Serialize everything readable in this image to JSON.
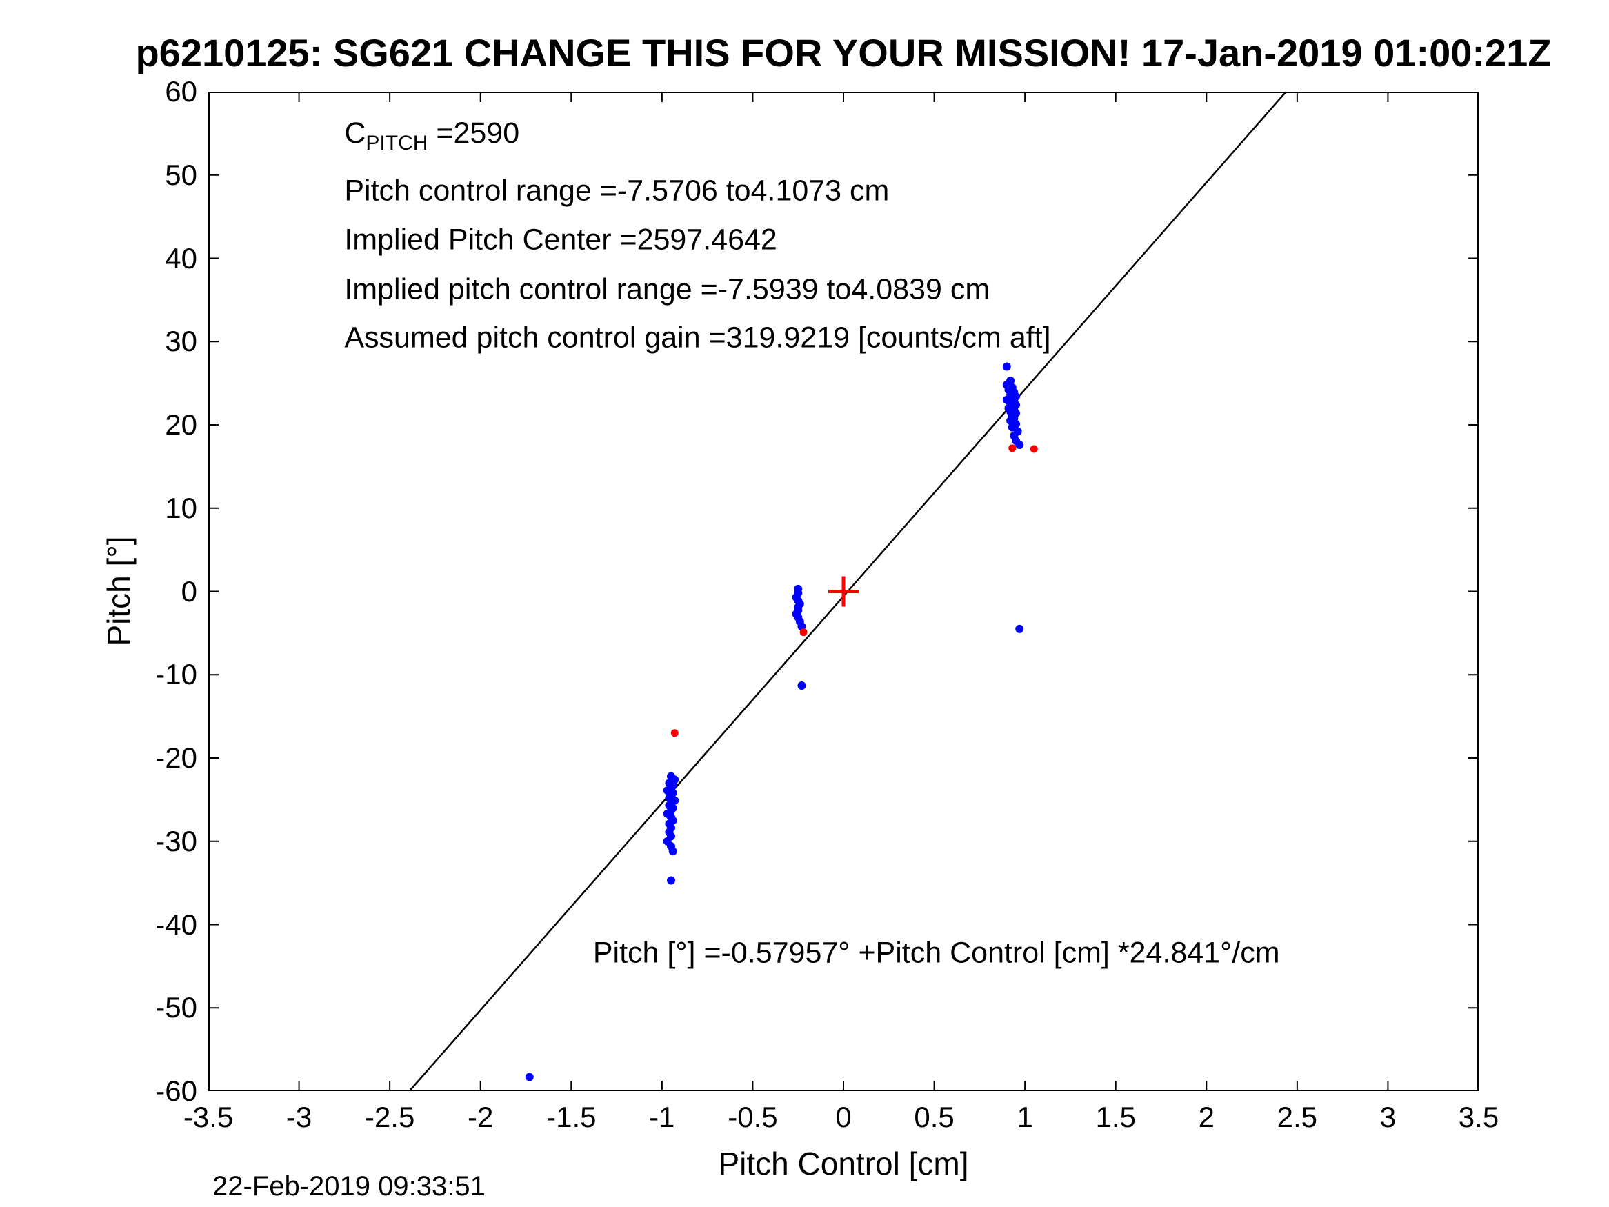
{
  "page": {
    "timestamp": "22-Feb-2019 09:33:51"
  },
  "chart_data": {
    "type": "scatter",
    "title": "p6210125: SG621 CHANGE THIS FOR YOUR MISSION! 17-Jan-2019 01:00:21Z",
    "xlabel": "Pitch Control [cm]",
    "ylabel": "Pitch [°]",
    "xlim": [
      -3.5,
      3.5
    ],
    "ylim": [
      -60,
      60
    ],
    "grid": false,
    "legend": "none",
    "axis_color": "#000000",
    "xticks": [
      -3.5,
      -3,
      -2.5,
      -2,
      -1.5,
      -1,
      -0.5,
      0,
      0.5,
      1,
      1.5,
      2,
      2.5,
      3,
      3.5
    ],
    "xtick_labels": [
      "-3.5",
      "-3",
      "-2.5",
      "-2",
      "-1.5",
      "-1",
      "-0.5",
      "0",
      "0.5",
      "1",
      "1.5",
      "2",
      "2.5",
      "3",
      "3.5"
    ],
    "yticks": [
      -60,
      -50,
      -40,
      -30,
      -20,
      -10,
      0,
      10,
      20,
      30,
      40,
      50,
      60
    ],
    "ytick_labels": [
      "-60",
      "-50",
      "-40",
      "-30",
      "-20",
      "-10",
      "0",
      "10",
      "20",
      "30",
      "40",
      "50",
      "60"
    ],
    "fit_line": {
      "intercept": -0.57957,
      "slope": 24.841,
      "color": "#000000"
    },
    "origin_marker": {
      "x": 0,
      "y": 0,
      "color": "#ff0000",
      "type": "plus"
    },
    "series": [
      {
        "name": "pitch-data",
        "color": "#0000ff",
        "marker": "dot",
        "marker_radius": 6,
        "points": [
          [
            -0.95,
            -22.2
          ],
          [
            -0.93,
            -22.6
          ],
          [
            -0.96,
            -23.0
          ],
          [
            -0.94,
            -23.3
          ],
          [
            -0.95,
            -23.6
          ],
          [
            -0.97,
            -23.9
          ],
          [
            -0.94,
            -24.2
          ],
          [
            -0.95,
            -24.5
          ],
          [
            -0.96,
            -24.8
          ],
          [
            -0.93,
            -25.1
          ],
          [
            -0.95,
            -25.4
          ],
          [
            -0.96,
            -25.7
          ],
          [
            -0.94,
            -26.0
          ],
          [
            -0.95,
            -26.3
          ],
          [
            -0.97,
            -26.7
          ],
          [
            -0.95,
            -27.1
          ],
          [
            -0.94,
            -27.5
          ],
          [
            -0.96,
            -27.9
          ],
          [
            -0.95,
            -28.4
          ],
          [
            -0.96,
            -28.9
          ],
          [
            -0.95,
            -29.4
          ],
          [
            -0.97,
            -30.0
          ],
          [
            -0.95,
            -30.6
          ],
          [
            -0.94,
            -31.2
          ],
          [
            -0.95,
            -34.7
          ],
          [
            -0.25,
            0.3
          ],
          [
            -0.25,
            -0.2
          ],
          [
            -0.26,
            -0.7
          ],
          [
            -0.25,
            -1.1
          ],
          [
            -0.24,
            -1.5
          ],
          [
            -0.25,
            -1.9
          ],
          [
            -0.25,
            -2.3
          ],
          [
            -0.26,
            -2.7
          ],
          [
            -0.25,
            -3.1
          ],
          [
            -0.24,
            -3.6
          ],
          [
            -0.23,
            -4.2
          ],
          [
            -0.23,
            -11.3
          ],
          [
            0.9,
            27.0
          ],
          [
            0.92,
            25.3
          ],
          [
            0.9,
            24.8
          ],
          [
            0.93,
            24.5
          ],
          [
            0.91,
            24.2
          ],
          [
            0.94,
            23.9
          ],
          [
            0.92,
            23.6
          ],
          [
            0.95,
            23.4
          ],
          [
            0.93,
            23.2
          ],
          [
            0.9,
            23.0
          ],
          [
            0.94,
            22.8
          ],
          [
            0.92,
            22.6
          ],
          [
            0.95,
            22.4
          ],
          [
            0.93,
            22.2
          ],
          [
            0.91,
            22.0
          ],
          [
            0.94,
            21.8
          ],
          [
            0.92,
            21.6
          ],
          [
            0.95,
            21.4
          ],
          [
            0.93,
            21.1
          ],
          [
            0.94,
            20.8
          ],
          [
            0.92,
            20.5
          ],
          [
            0.95,
            20.1
          ],
          [
            0.93,
            19.7
          ],
          [
            0.96,
            19.2
          ],
          [
            0.94,
            18.7
          ],
          [
            0.95,
            18.1
          ],
          [
            0.97,
            17.6
          ],
          [
            0.97,
            -4.5
          ],
          [
            -1.73,
            -58.3
          ]
        ]
      },
      {
        "name": "flagged-points",
        "color": "#ff0000",
        "marker": "dot",
        "marker_radius": 5.5,
        "points": [
          [
            -0.93,
            -17.0
          ],
          [
            -0.22,
            -4.9
          ],
          [
            0.93,
            17.2
          ],
          [
            1.05,
            17.1
          ]
        ]
      }
    ],
    "annotations": {
      "cpitch": {
        "base": "C",
        "sub": "PITCH",
        "rest": " =2590",
        "x": -2.75,
        "y": 54.7
      },
      "lines": [
        {
          "text": "Pitch control range =-7.5706 to4.1073 cm",
          "x": -2.75,
          "y": 48.1
        },
        {
          "text": "Implied Pitch Center =2597.4642",
          "x": -2.75,
          "y": 42.2
        },
        {
          "text": "Implied pitch control range =-7.5939 to4.0839 cm",
          "x": -2.75,
          "y": 36.2
        },
        {
          "text": "Assumed pitch control gain =319.9219 [counts/cm aft]",
          "x": -2.75,
          "y": 30.4
        }
      ],
      "equation": {
        "text": "Pitch [°] =-0.57957° +Pitch Control [cm] *24.841°/cm",
        "x": -1.38,
        "y": -43.4
      }
    }
  }
}
